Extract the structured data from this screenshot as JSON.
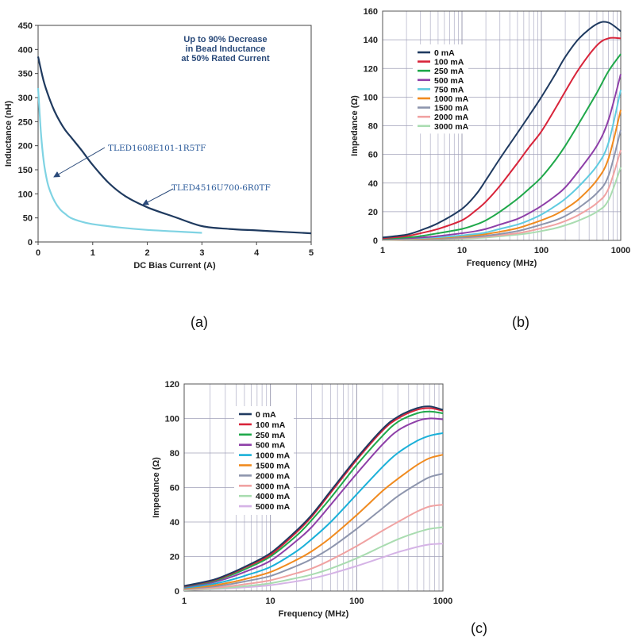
{
  "panel_labels": {
    "a": "(a)",
    "b": "(b)",
    "c": "(c)"
  },
  "chart_data": [
    {
      "id": "a",
      "type": "line",
      "xlabel": "DC Bias Current (A)",
      "ylabel": "Inductance (nH)",
      "xlim": [
        0,
        5
      ],
      "ylim": [
        0,
        450
      ],
      "xticks": [
        0,
        1,
        2,
        3,
        4,
        5
      ],
      "yticks": [
        0,
        50,
        100,
        150,
        200,
        250,
        300,
        350,
        400,
        450
      ],
      "grid": false,
      "annotation": [
        "Up to 90% Decrease",
        "in Bead Inductance",
        "at 50% Rated Current"
      ],
      "series": [
        {
          "name": "TLED4516U700-6R0TF",
          "color": "#1f3a5f",
          "x": [
            0,
            0.1,
            0.2,
            0.3,
            0.4,
            0.5,
            0.6,
            0.8,
            1.0,
            1.3,
            1.6,
            2.0,
            2.5,
            3.0,
            3.5,
            4.0,
            4.5,
            5.0
          ],
          "y": [
            385,
            335,
            300,
            272,
            250,
            232,
            218,
            190,
            160,
            122,
            95,
            72,
            52,
            33,
            27,
            24,
            21,
            18
          ]
        },
        {
          "name": "TLED1608E101-1R5TF",
          "color": "#7fd3e3",
          "x": [
            0,
            0.05,
            0.1,
            0.15,
            0.2,
            0.3,
            0.4,
            0.5,
            0.6,
            0.8,
            1.0,
            1.5,
            2.0,
            2.5,
            3.0
          ],
          "y": [
            320,
            230,
            170,
            135,
            112,
            85,
            68,
            58,
            50,
            42,
            37,
            30,
            25,
            22,
            19
          ]
        }
      ]
    },
    {
      "id": "b",
      "type": "line",
      "xscale": "log",
      "xlabel": "Frequency (MHz)",
      "ylabel": "Impedance (Ω)",
      "xlim": [
        1,
        1000
      ],
      "ylim": [
        0,
        160
      ],
      "xticks": [
        1,
        10,
        100,
        1000
      ],
      "yticks": [
        0,
        20,
        40,
        60,
        80,
        100,
        120,
        140,
        160
      ],
      "grid": true,
      "legend": "top-left",
      "x": [
        1,
        2,
        3,
        5,
        10,
        15,
        20,
        30,
        50,
        70,
        100,
        150,
        200,
        300,
        500,
        700,
        1000
      ],
      "series": [
        {
          "name": "0 mA",
          "color": "#1f3a60",
          "values": [
            2,
            4,
            7,
            12,
            22,
            32,
            42,
            57,
            75,
            87,
            100,
            116,
            128,
            141,
            151,
            152,
            146
          ]
        },
        {
          "name": "100 mA",
          "color": "#d8243a",
          "values": [
            1.5,
            3,
            5,
            8,
            14,
            21,
            27,
            38,
            54,
            65,
            76,
            92,
            104,
            120,
            136,
            141,
            141
          ]
        },
        {
          "name": "250 mA",
          "color": "#1fa84a",
          "values": [
            1.2,
            2,
            3,
            5,
            8,
            11,
            14,
            20,
            29,
            36,
            44,
            56,
            66,
            82,
            103,
            118,
            130
          ]
        },
        {
          "name": "500 mA",
          "color": "#8e3fa8",
          "values": [
            1,
            1.5,
            2,
            3,
            5,
            6.5,
            8,
            11,
            15,
            19,
            24,
            31,
            37,
            49,
            66,
            84,
            116
          ]
        },
        {
          "name": "750 mA",
          "color": "#5fcbe0",
          "values": [
            0.8,
            1.2,
            1.6,
            2.2,
            3.5,
            4.5,
            5.5,
            8,
            11,
            14,
            18,
            24,
            29,
            38,
            52,
            68,
            105
          ]
        },
        {
          "name": "1000 mA",
          "color": "#f08a1e",
          "values": [
            0.6,
            1,
            1.3,
            1.8,
            2.8,
            3.6,
            4.4,
            6,
            8.5,
            11,
            14,
            18,
            22,
            29,
            42,
            57,
            91
          ]
        },
        {
          "name": "1500 mA",
          "color": "#8d95ad",
          "values": [
            0.5,
            0.8,
            1,
            1.4,
            2,
            2.6,
            3.2,
            4.5,
            6.5,
            8.5,
            11,
            14,
            17,
            23,
            33,
            45,
            77
          ]
        },
        {
          "name": "2000 mA",
          "color": "#f0a2a2",
          "values": [
            0.4,
            0.6,
            0.8,
            1.1,
            1.6,
            2.1,
            2.6,
            3.6,
            5,
            6.5,
            8.5,
            11,
            13.5,
            18,
            26,
            36,
            63
          ]
        },
        {
          "name": "3000 mA",
          "color": "#a9dcb0",
          "values": [
            0.3,
            0.5,
            0.6,
            0.8,
            1.2,
            1.6,
            2,
            2.8,
            4,
            5,
            6.5,
            8.5,
            10.5,
            14,
            20,
            28,
            51
          ]
        }
      ]
    },
    {
      "id": "c",
      "type": "line",
      "xscale": "log",
      "xlabel": "Frequency (MHz)",
      "ylabel": "Impedance (Ω)",
      "xlim": [
        1,
        1000
      ],
      "ylim": [
        0,
        120
      ],
      "xticks": [
        1,
        10,
        100,
        1000
      ],
      "yticks": [
        0,
        20,
        40,
        60,
        80,
        100,
        120
      ],
      "grid": true,
      "legend": "top-left",
      "x": [
        1,
        2,
        3,
        5,
        10,
        20,
        30,
        50,
        100,
        200,
        300,
        500,
        700,
        1000
      ],
      "series": [
        {
          "name": "0 mA",
          "color": "#1f3a60",
          "values": [
            3,
            6,
            9,
            14,
            22,
            35,
            44,
            58,
            77,
            94,
            101,
            106,
            107,
            105
          ]
        },
        {
          "name": "100 mA",
          "color": "#d8243a",
          "values": [
            2.8,
            5.7,
            8.6,
            13.5,
            21,
            34,
            43,
            57,
            76,
            93,
            100,
            105,
            106,
            104.5
          ]
        },
        {
          "name": "250 mA",
          "color": "#1fa84a",
          "values": [
            2.6,
            5.3,
            8,
            12.5,
            20,
            32,
            41,
            54,
            73,
            90,
            98,
            103,
            104,
            103
          ]
        },
        {
          "name": "500 mA",
          "color": "#8e3fa8",
          "values": [
            2.3,
            4.7,
            7,
            11,
            17.5,
            29,
            37,
            50,
            68,
            85,
            93,
            98.5,
            100,
            99.5
          ]
        },
        {
          "name": "1000 mA",
          "color": "#1ab0d8",
          "values": [
            1.9,
            3.8,
            5.6,
            8.8,
            14,
            23,
            30,
            40,
            56,
            72,
            80,
            87,
            90,
            91.5
          ]
        },
        {
          "name": "1500 mA",
          "color": "#f08a1e",
          "values": [
            1.5,
            3,
            4.4,
            6.8,
            11,
            18,
            23,
            31,
            44,
            58,
            65,
            73,
            77,
            79
          ]
        },
        {
          "name": "2000 mA",
          "color": "#8d95ad",
          "values": [
            1.2,
            2.4,
            3.5,
            5.5,
            8.7,
            14.5,
            18.5,
            25,
            36,
            48,
            55,
            62,
            66,
            68
          ]
        },
        {
          "name": "3000 mA",
          "color": "#f0a2a2",
          "values": [
            0.9,
            1.7,
            2.5,
            3.9,
            6.2,
            10.3,
            13,
            18,
            26,
            35,
            40,
            46,
            49,
            50
          ]
        },
        {
          "name": "4000 mA",
          "color": "#a9dcb0",
          "values": [
            0.6,
            1.2,
            1.8,
            2.8,
            4.5,
            7.5,
            9.5,
            13,
            19,
            26,
            30,
            34,
            36,
            37
          ]
        },
        {
          "name": "5000 mA",
          "color": "#d5b3e6",
          "values": [
            0.5,
            1,
            1.4,
            2.1,
            3.4,
            5.6,
            7.2,
            10,
            14.5,
            19.5,
            22.5,
            25.5,
            27,
            27.5
          ]
        }
      ]
    }
  ]
}
